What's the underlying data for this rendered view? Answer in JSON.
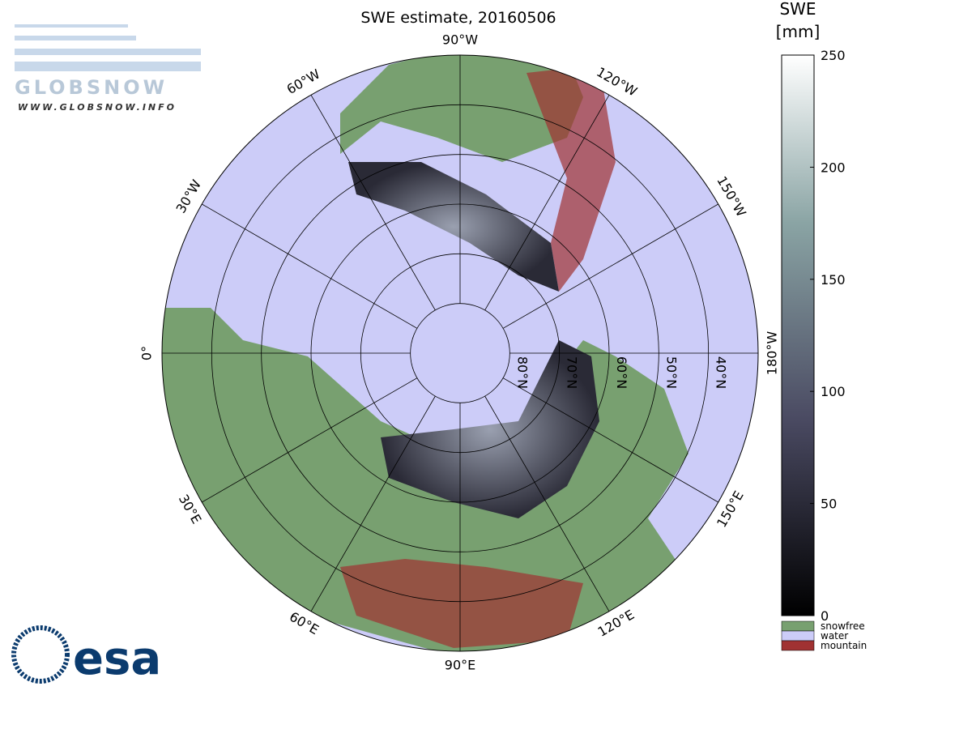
{
  "header": {
    "logo": "GLOBSNOW",
    "url": "WWW.GLOBSNOW.INFO",
    "title": "SWE estimate, 20160506",
    "agency": "esa"
  },
  "graticule": {
    "meridian_labels": [
      "180°W",
      "150°E",
      "120°E",
      "90°E",
      "60°E",
      "30°E",
      "0°",
      "30°W",
      "60°W",
      "90°W",
      "120°W",
      "150°W"
    ],
    "parallel_labels": [
      "80°N",
      "70°N",
      "60°N",
      "50°N",
      "40°N"
    ]
  },
  "colorbar": {
    "label": [
      "SWE",
      "[mm]"
    ],
    "lim": [
      0,
      250
    ],
    "ticks": [
      0,
      50,
      100,
      150,
      200,
      250
    ]
  },
  "legend": [
    {
      "label": "snowfree",
      "color": "#78a070"
    },
    {
      "label": "water",
      "color": "#ccccf8"
    },
    {
      "label": "mountain",
      "color": "#a03232"
    }
  ]
}
